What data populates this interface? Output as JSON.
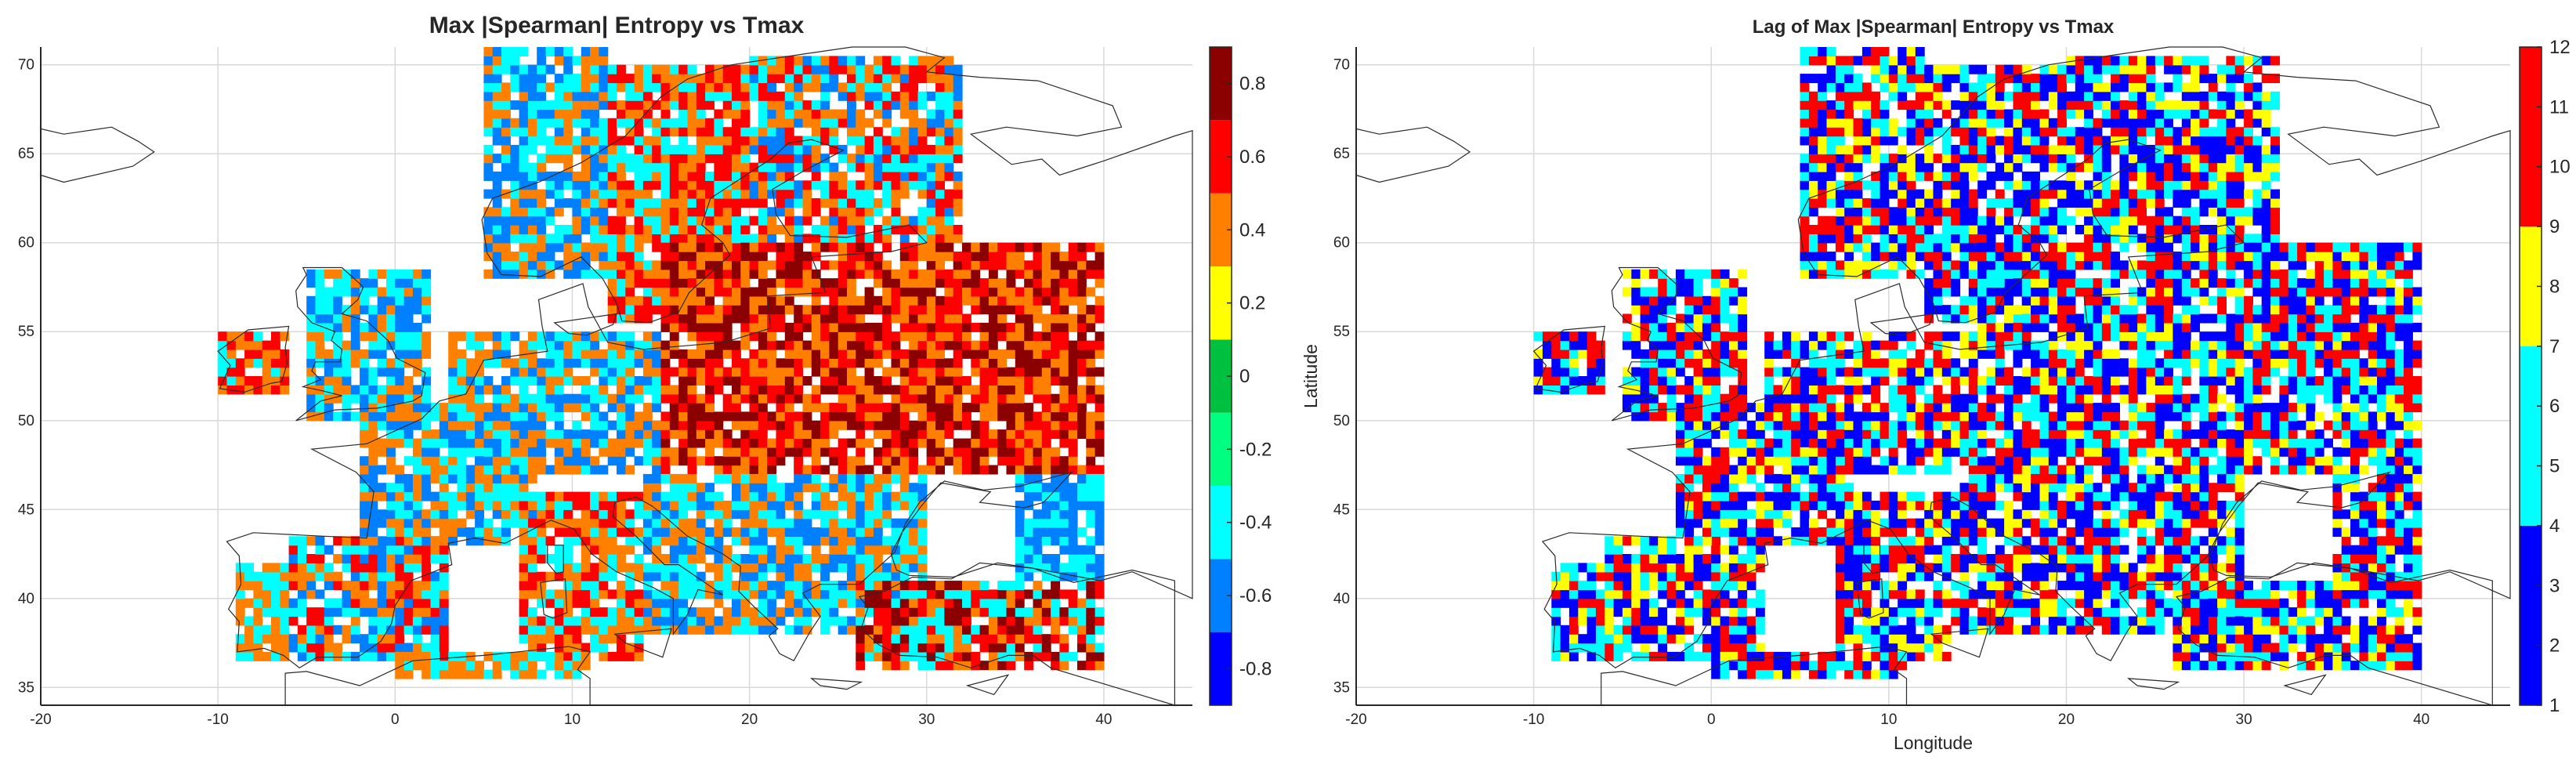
{
  "chart_data": [
    {
      "type": "heatmap",
      "title": "Max |Spearman| Entropy vs Tmax",
      "xlabel": "",
      "ylabel": "",
      "xlim": [
        -20,
        45
      ],
      "ylim": [
        34,
        71
      ],
      "xticks": [
        -20,
        -10,
        0,
        10,
        20,
        30,
        40
      ],
      "yticks": [
        35,
        40,
        45,
        50,
        55,
        60,
        65,
        70
      ],
      "grid": true,
      "colorbar": {
        "position": "right",
        "range": [
          -0.9,
          0.9
        ],
        "ticks": [
          -0.8,
          -0.6,
          -0.4,
          -0.2,
          0,
          0.2,
          0.4,
          0.6,
          0.8
        ],
        "bins": [
          {
            "from": -0.9,
            "to": -0.7,
            "color": "#0000ff"
          },
          {
            "from": -0.7,
            "to": -0.5,
            "color": "#0080ff"
          },
          {
            "from": -0.5,
            "to": -0.3,
            "color": "#00ffff"
          },
          {
            "from": -0.3,
            "to": -0.1,
            "color": "#00ff80"
          },
          {
            "from": -0.1,
            "to": 0.1,
            "color": "#00c040"
          },
          {
            "from": 0.1,
            "to": 0.3,
            "color": "#ffff00"
          },
          {
            "from": 0.3,
            "to": 0.5,
            "color": "#ff8000"
          },
          {
            "from": 0.5,
            "to": 0.7,
            "color": "#ff0000"
          },
          {
            "from": 0.7,
            "to": 0.9,
            "color": "#8b0000"
          }
        ]
      },
      "regions": [
        {
          "lon": [
            -9,
            -6
          ],
          "lat": [
            36.5,
            42
          ],
          "values": [
            -0.4,
            0.4
          ]
        },
        {
          "lon": [
            -6,
            3
          ],
          "lat": [
            36.5,
            43.5
          ],
          "values": [
            -0.4,
            0.4,
            0.6,
            -0.6
          ]
        },
        {
          "lon": [
            -2,
            8
          ],
          "lat": [
            43,
            51
          ],
          "values": [
            -0.4,
            -0.6,
            0.4
          ]
        },
        {
          "lon": [
            -5,
            2
          ],
          "lat": [
            50,
            58.5
          ],
          "values": [
            -0.4,
            0.4,
            -0.6
          ]
        },
        {
          "lon": [
            -10,
            -6
          ],
          "lat": [
            51.5,
            55
          ],
          "values": [
            -0.4,
            0.4,
            0.6
          ]
        },
        {
          "lon": [
            3,
            15
          ],
          "lat": [
            47,
            55
          ],
          "values": [
            -0.4,
            -0.6,
            0.4
          ]
        },
        {
          "lon": [
            5,
            12
          ],
          "lat": [
            58,
            71
          ],
          "values": [
            0.4,
            -0.4,
            -0.6
          ]
        },
        {
          "lon": [
            12,
            20
          ],
          "lat": [
            55.5,
            70
          ],
          "values": [
            0.4,
            -0.4,
            0.6
          ]
        },
        {
          "lon": [
            20,
            32
          ],
          "lat": [
            60,
            70.5
          ],
          "values": [
            0.4,
            -0.4,
            -0.6,
            0.6
          ]
        },
        {
          "lon": [
            15,
            40
          ],
          "lat": [
            47,
            60
          ],
          "values": [
            0.6,
            0.4,
            0.8
          ]
        },
        {
          "lon": [
            7,
            14
          ],
          "lat": [
            36.5,
            46
          ],
          "values": [
            0.4,
            0.6,
            -0.4
          ]
        },
        {
          "lon": [
            14,
            30
          ],
          "lat": [
            38,
            47
          ],
          "values": [
            -0.4,
            -0.6,
            0.4
          ]
        },
        {
          "lon": [
            26,
            40
          ],
          "lat": [
            36,
            41
          ],
          "values": [
            0.6,
            0.8,
            0.4,
            -0.4
          ]
        },
        {
          "lon": [
            35,
            40
          ],
          "lat": [
            41,
            47
          ],
          "values": [
            -0.4,
            -0.6
          ]
        },
        {
          "lon": [
            0,
            11
          ],
          "lat": [
            35.5,
            37
          ],
          "values": [
            0.4,
            -0.4
          ]
        }
      ]
    },
    {
      "type": "heatmap",
      "title": "Lag of Max |Spearman| Entropy vs Tmax",
      "xlabel": "Longitude",
      "ylabel": "Latitude",
      "xlim": [
        -20,
        45
      ],
      "ylim": [
        34,
        71
      ],
      "xticks": [
        -20,
        -10,
        0,
        10,
        20,
        30,
        40
      ],
      "yticks": [
        35,
        40,
        45,
        50,
        55,
        60,
        65,
        70
      ],
      "grid": true,
      "colorbar": {
        "position": "right",
        "range": [
          1,
          12
        ],
        "ticks": [
          1,
          2,
          3,
          4,
          5,
          6,
          7,
          8,
          9,
          10,
          11,
          12
        ],
        "bins": [
          {
            "from": 1,
            "to": 4,
            "color": "#0000ff"
          },
          {
            "from": 4,
            "to": 7,
            "color": "#00ffff"
          },
          {
            "from": 7,
            "to": 9,
            "color": "#ffff00"
          },
          {
            "from": 9,
            "to": 12,
            "color": "#ff0000"
          }
        ]
      },
      "regions": [
        {
          "lon": [
            -9,
            -6
          ],
          "lat": [
            36.5,
            42
          ],
          "values": [
            2,
            5,
            8,
            11
          ]
        },
        {
          "lon": [
            -6,
            3
          ],
          "lat": [
            36.5,
            43.5
          ],
          "values": [
            2,
            5,
            8,
            11
          ]
        },
        {
          "lon": [
            -2,
            8
          ],
          "lat": [
            43,
            51
          ],
          "values": [
            2,
            5,
            8,
            11
          ]
        },
        {
          "lon": [
            -5,
            2
          ],
          "lat": [
            50,
            58.5
          ],
          "values": [
            2,
            5,
            8,
            11
          ]
        },
        {
          "lon": [
            -10,
            -6
          ],
          "lat": [
            51.5,
            55
          ],
          "values": [
            2,
            5,
            8,
            11
          ]
        },
        {
          "lon": [
            3,
            15
          ],
          "lat": [
            47,
            55
          ],
          "values": [
            2,
            5,
            8,
            11
          ]
        },
        {
          "lon": [
            5,
            12
          ],
          "lat": [
            58,
            71
          ],
          "values": [
            2,
            5,
            8,
            11
          ]
        },
        {
          "lon": [
            12,
            20
          ],
          "lat": [
            55.5,
            70
          ],
          "values": [
            2,
            5,
            8,
            11
          ]
        },
        {
          "lon": [
            20,
            32
          ],
          "lat": [
            60,
            70.5
          ],
          "values": [
            2,
            5,
            8,
            11
          ]
        },
        {
          "lon": [
            15,
            40
          ],
          "lat": [
            47,
            60
          ],
          "values": [
            2,
            5,
            8,
            11
          ]
        },
        {
          "lon": [
            7,
            14
          ],
          "lat": [
            36.5,
            46
          ],
          "values": [
            2,
            5,
            8,
            11
          ]
        },
        {
          "lon": [
            14,
            30
          ],
          "lat": [
            38,
            47
          ],
          "values": [
            2,
            5,
            8,
            11
          ]
        },
        {
          "lon": [
            26,
            40
          ],
          "lat": [
            36,
            41
          ],
          "values": [
            2,
            5,
            8,
            11
          ]
        },
        {
          "lon": [
            35,
            40
          ],
          "lat": [
            41,
            47
          ],
          "values": [
            2,
            5,
            8,
            11
          ]
        },
        {
          "lon": [
            0,
            11
          ],
          "lat": [
            35.5,
            37
          ],
          "values": [
            2,
            5,
            8,
            11
          ]
        }
      ]
    }
  ]
}
